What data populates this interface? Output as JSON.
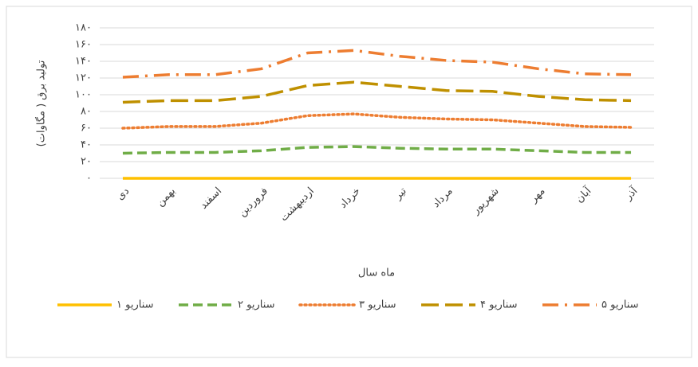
{
  "chart_data": {
    "type": "line",
    "y_label": "تولید برق ( مگاوات)",
    "x_label": "ماه سال",
    "categories": [
      "دی",
      "بهمن",
      "اسفند",
      "فروردین",
      "اردیبهشت",
      "خرداد",
      "تیر",
      "مرداد",
      "شهریور",
      "مهر",
      "آبان",
      "آذر"
    ],
    "series": [
      {
        "name": "سناریو ۱",
        "color": "#ffc000",
        "line_style": "solid",
        "values": [
          0,
          0,
          0,
          0,
          0,
          0,
          0,
          0,
          0,
          0,
          0,
          0
        ]
      },
      {
        "name": "سناریو ۲",
        "color": "#70ad47",
        "line_style": "dash",
        "values": [
          30,
          31,
          31,
          33,
          37,
          38,
          36,
          35,
          35,
          33,
          31,
          31
        ]
      },
      {
        "name": "سناریو ۳",
        "color": "#ed7d31",
        "line_style": "dot",
        "values": [
          60,
          62,
          62,
          66,
          75,
          77,
          73,
          71,
          70,
          66,
          62,
          61
        ]
      },
      {
        "name": "سناریو ۴",
        "color": "#bf9000",
        "line_style": "long-dash",
        "values": [
          91,
          93,
          93,
          98,
          111,
          115,
          110,
          105,
          104,
          98,
          94,
          93
        ]
      },
      {
        "name": "سناریو ۵",
        "color": "#ed7d31",
        "line_style": "dash-dot",
        "values": [
          121,
          124,
          124,
          131,
          150,
          153,
          146,
          141,
          139,
          131,
          125,
          124
        ]
      }
    ],
    "ylim": [
      0,
      180
    ],
    "yticks": [
      {
        "value": 0,
        "label": "۰"
      },
      {
        "value": 20,
        "label": "۲۰"
      },
      {
        "value": 40,
        "label": "۴۰"
      },
      {
        "value": 60,
        "label": "۶۰"
      },
      {
        "value": 80,
        "label": "۸۰"
      },
      {
        "value": 100,
        "label": "۱۰۰"
      },
      {
        "value": 120,
        "label": "۱۲۰"
      },
      {
        "value": 140,
        "label": "۱۴۰"
      },
      {
        "value": 160,
        "label": "۱۶۰"
      },
      {
        "value": 180,
        "label": "۱۸۰"
      }
    ],
    "grid": true,
    "legend": "bottom"
  }
}
